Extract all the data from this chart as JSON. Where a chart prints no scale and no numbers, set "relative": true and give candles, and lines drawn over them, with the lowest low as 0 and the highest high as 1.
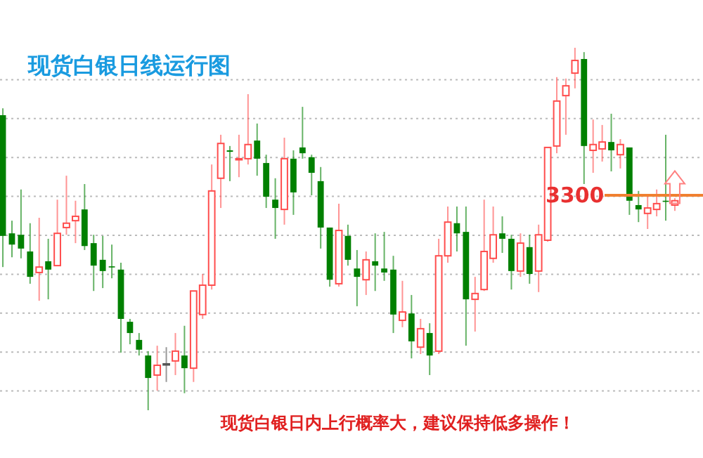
{
  "chart_data": {
    "type": "candlestick",
    "title": "现货白银日线运行图",
    "relative": true,
    "grid": "y",
    "categories": [
      null,
      null,
      null,
      null,
      null,
      null,
      null,
      null,
      null,
      null,
      null,
      null,
      null,
      null,
      null,
      null,
      null,
      null,
      null,
      null,
      null,
      null,
      null,
      null,
      null,
      null,
      null,
      null,
      null,
      null,
      null,
      null,
      null,
      null,
      null,
      null,
      null,
      null,
      null,
      null,
      null,
      null,
      null,
      null,
      null,
      null,
      null,
      null,
      null,
      null,
      null,
      null,
      null,
      null,
      null,
      null,
      null,
      null,
      null,
      null,
      null,
      null,
      null,
      null,
      null,
      null,
      null,
      null,
      null,
      null,
      null,
      null,
      null,
      null,
      null
    ],
    "ohlc": [
      [
        0.814,
        0.833,
        0.395,
        0.481
      ],
      [
        0.488,
        0.523,
        0.422,
        0.457
      ],
      [
        0.484,
        0.609,
        0.419,
        0.446
      ],
      [
        0.438,
        0.516,
        0.349,
        0.368
      ],
      [
        0.38,
        0.531,
        0.302,
        0.395
      ],
      [
        0.411,
        0.473,
        0.306,
        0.388
      ],
      [
        0.399,
        0.581,
        0.399,
        0.488
      ],
      [
        0.504,
        0.647,
        0.484,
        0.516
      ],
      [
        0.523,
        0.578,
        0.461,
        0.535
      ],
      [
        0.554,
        0.624,
        0.442,
        0.453
      ],
      [
        0.461,
        0.484,
        0.329,
        0.399
      ],
      [
        0.415,
        0.481,
        0.337,
        0.384
      ],
      [
        0.397,
        0.457,
        0.364,
        0.395
      ],
      [
        0.388,
        0.407,
        0.159,
        0.252
      ],
      [
        0.244,
        0.252,
        0.182,
        0.213
      ],
      [
        0.194,
        0.213,
        0.151,
        0.167
      ],
      [
        0.151,
        0.163,
        0,
        0.089
      ],
      [
        0.097,
        0.178,
        0.054,
        0.124
      ],
      [
        0.128,
        0.174,
        0.078,
        0.128
      ],
      [
        0.136,
        0.213,
        0.097,
        0.163
      ],
      [
        0.151,
        0.233,
        0.047,
        0.116
      ],
      [
        0.116,
        0.329,
        0.078,
        0.329
      ],
      [
        0.264,
        0.376,
        0.252,
        0.345
      ],
      [
        0.345,
        0.678,
        0.333,
        0.605
      ],
      [
        0.64,
        0.76,
        0.558,
        0.736
      ],
      [
        0.717,
        0.729,
        0.632,
        0.713
      ],
      [
        0.692,
        0.76,
        0.643,
        0.694
      ],
      [
        0.694,
        0.872,
        0.678,
        0.733
      ],
      [
        0.744,
        0.791,
        0.647,
        0.694
      ],
      [
        0.682,
        0.705,
        0.558,
        0.589
      ],
      [
        0.581,
        0.64,
        0.473,
        0.558
      ],
      [
        0.554,
        0.752,
        0.512,
        0.694
      ],
      [
        0.694,
        0.717,
        0.539,
        0.601
      ],
      [
        0.725,
        0.837,
        0.694,
        0.709
      ],
      [
        0.698,
        0.705,
        0.593,
        0.655
      ],
      [
        0.632,
        0.671,
        0.446,
        0.504
      ],
      [
        0.504,
        0.504,
        0.341,
        0.36
      ],
      [
        0.349,
        0.57,
        0.341,
        0.496
      ],
      [
        0.481,
        0.512,
        0.399,
        0.415
      ],
      [
        0.391,
        0.442,
        0.287,
        0.368
      ],
      [
        0.36,
        0.438,
        0.318,
        0.415
      ],
      [
        0.411,
        0.488,
        0.329,
        0.399
      ],
      [
        0.391,
        0.492,
        0.357,
        0.38
      ],
      [
        0.388,
        0.426,
        0.213,
        0.264
      ],
      [
        0.248,
        0.357,
        0.229,
        0.271
      ],
      [
        0.267,
        0.318,
        0.143,
        0.19
      ],
      [
        0.174,
        0.252,
        0.155,
        0.225
      ],
      [
        0.213,
        0.24,
        0.097,
        0.151
      ],
      [
        0.163,
        0.473,
        0.155,
        0.426
      ],
      [
        0.426,
        0.562,
        0.407,
        0.519
      ],
      [
        0.516,
        0.562,
        0.438,
        0.488
      ],
      [
        0.492,
        0.562,
        0.178,
        0.306
      ],
      [
        0.306,
        0.368,
        0.217,
        0.322
      ],
      [
        0.333,
        0.581,
        0.329,
        0.438
      ],
      [
        0.419,
        0.562,
        0.407,
        0.484
      ],
      [
        0.488,
        0.535,
        0.434,
        0.473
      ],
      [
        0.473,
        0.484,
        0.333,
        0.384
      ],
      [
        0.384,
        0.488,
        0.368,
        0.461
      ],
      [
        0.45,
        0.484,
        0.349,
        0.376
      ],
      [
        0.384,
        0.512,
        0.326,
        0.484
      ],
      [
        0.469,
        0.725,
        0.465,
        0.725
      ],
      [
        0.729,
        0.919,
        0.709,
        0.853
      ],
      [
        0.868,
        0.915,
        0.76,
        0.895
      ],
      [
        0.93,
        1,
        0.888,
        0.965
      ],
      [
        0.969,
        0.988,
        0.624,
        0.729
      ],
      [
        0.717,
        0.802,
        0.655,
        0.733
      ],
      [
        0.721,
        0.787,
        0.686,
        0.74
      ],
      [
        0.74,
        0.818,
        0.659,
        0.717
      ],
      [
        0.705,
        0.748,
        0.667,
        0.733
      ],
      [
        0.725,
        0.725,
        0.539,
        0.578
      ],
      [
        0.566,
        0.605,
        0.519,
        0.554
      ],
      [
        0.543,
        0.589,
        0.5,
        0.558
      ],
      [
        0.554,
        0.609,
        0.535,
        0.57
      ],
      [
        0.578,
        0.76,
        0.523,
        0.576
      ],
      [
        0.566,
        0.585,
        0.55,
        0.578
      ]
    ],
    "colors": [
      "#008000",
      "#008000",
      "#008000",
      "#008000",
      "#ff4d4d",
      "#008000",
      "#ff4d4d",
      "#ff4d4d",
      "#ff4d4d",
      "#008000",
      "#008000",
      "#008000",
      "#008000",
      "#008000",
      "#008000",
      "#008000",
      "#008000",
      "#ff4d4d",
      "#555555",
      "#ff4d4d",
      "#008000",
      "#ff4d4d",
      "#ff4d4d",
      "#ff4d4d",
      "#ff4d4d",
      "#008000",
      "#ff4d4d",
      "#ff4d4d",
      "#008000",
      "#008000",
      "#008000",
      "#ff4d4d",
      "#008000",
      "#008000",
      "#008000",
      "#008000",
      "#008000",
      "#ff4d4d",
      "#008000",
      "#008000",
      "#ff4d4d",
      "#008000",
      "#008000",
      "#008000",
      "#ff4d4d",
      "#008000",
      "#ff4d4d",
      "#008000",
      "#ff4d4d",
      "#ff4d4d",
      "#008000",
      "#008000",
      "#ff4d4d",
      "#ff4d4d",
      "#ff4d4d",
      "#008000",
      "#008000",
      "#ff4d4d",
      "#008000",
      "#ff4d4d",
      "#ff4d4d",
      "#ff4d4d",
      "#ff4d4d",
      "#ff4d4d",
      "#008000",
      "#ff4d4d",
      "#ff4d4d",
      "#008000",
      "#ff4d4d",
      "#008000",
      "#008000",
      "#ff4d4d",
      "#ff4d4d",
      "#008000",
      "#ff4d4d"
    ],
    "ref_lines": [
      {
        "axis": "y",
        "value": 0.593,
        "color": "#f08030"
      }
    ],
    "annotations": [
      "3300",
      "现货白银日内上行概率大，建议保持低多操作！"
    ]
  }
}
